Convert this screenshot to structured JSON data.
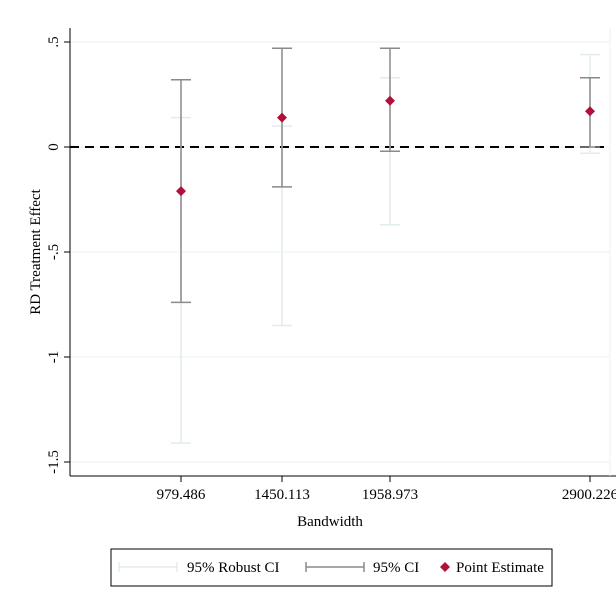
{
  "chart_data": {
    "type": "scatter",
    "title": "",
    "xlabel": "Bandwidth",
    "ylabel": "RD Treatment Effect",
    "x_ticks": [
      "979.486",
      "1450.113",
      "1958.973",
      "2900.226"
    ],
    "y_ticks": [
      ".5",
      "0",
      "-.5",
      "-1",
      "-1.5"
    ],
    "y_tick_values": [
      0.5,
      0,
      -0.5,
      -1,
      -1.5
    ],
    "ylim": [
      -1.55,
      0.52
    ],
    "grid": true,
    "reference_line": {
      "y": 0,
      "style": "dashed"
    },
    "legend_position": "bottom",
    "points": [
      {
        "x": "979.486",
        "estimate": -0.21,
        "ci_low": -0.74,
        "ci_high": 0.32,
        "robust_low": -1.41,
        "robust_high": 0.14
      },
      {
        "x": "1450.113",
        "estimate": 0.14,
        "ci_low": -0.19,
        "ci_high": 0.47,
        "robust_low": -0.85,
        "robust_high": 0.1
      },
      {
        "x": "1958.973",
        "estimate": 0.22,
        "ci_low": -0.02,
        "ci_high": 0.47,
        "robust_low": -0.37,
        "robust_high": 0.33
      },
      {
        "x": "2900.226",
        "estimate": 0.17,
        "ci_low": 0.0,
        "ci_high": 0.33,
        "robust_low": -0.03,
        "robust_high": 0.44
      }
    ],
    "legend": [
      {
        "key": "robust",
        "label": "95% Robust CI"
      },
      {
        "key": "ci",
        "label": "95% CI"
      },
      {
        "key": "point",
        "label": "Point Estimate"
      }
    ],
    "colors": {
      "robust_ci": "#e2ecec",
      "ci": "#8a8a8a",
      "point": "#b0103a",
      "grid": "#eaf2f3",
      "reference": "#000000"
    }
  }
}
